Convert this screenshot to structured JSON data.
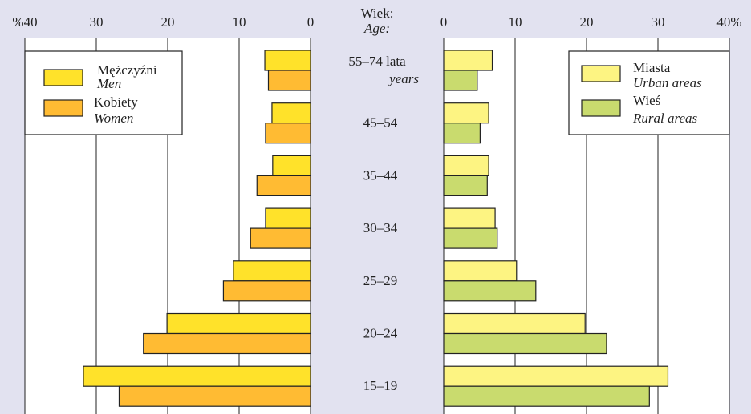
{
  "age_header": {
    "pl": "Wiek:",
    "en": "Age:"
  },
  "age_groups": [
    {
      "label": "55–74 lata",
      "sublabel": "years"
    },
    {
      "label": "45–54"
    },
    {
      "label": "35–44"
    },
    {
      "label": "30–34"
    },
    {
      "label": "25–29"
    },
    {
      "label": "20–24"
    },
    {
      "label": "15–19"
    }
  ],
  "left_axis": {
    "ticks": [
      "%40",
      "30",
      "20",
      "10",
      "0"
    ],
    "tick_values": [
      40,
      30,
      20,
      10,
      0
    ]
  },
  "right_axis": {
    "ticks": [
      "0",
      "10",
      "20",
      "30",
      "40%"
    ],
    "tick_values": [
      0,
      10,
      20,
      30,
      40
    ]
  },
  "legend_left": [
    {
      "pl": "Mężczyźni",
      "en": "Men",
      "color": "#ffe22a"
    },
    {
      "pl": "Kobiety",
      "en": "Women",
      "color": "#ffbb33"
    }
  ],
  "legend_right": [
    {
      "pl": "Miasta",
      "en": "Urban areas",
      "color": "#fdf482"
    },
    {
      "pl": "Wieś",
      "en": "Rural areas",
      "color": "#c9db6e"
    }
  ],
  "colors": {
    "background": "#e2e2f0",
    "panel": "#ffffff",
    "men": "#ffe22a",
    "women": "#ffbb33",
    "urban": "#fdf482",
    "rural": "#c9db6e",
    "stroke": "#222222"
  },
  "chart_data": [
    {
      "type": "bar",
      "orientation": "horizontal",
      "direction": "leftward",
      "categories": [
        "55–74",
        "45–54",
        "35–44",
        "30–34",
        "25–29",
        "20–24",
        "15–19"
      ],
      "series": [
        {
          "name": "Mężczyźni / Men",
          "values": [
            6.4,
            5.4,
            5.3,
            6.3,
            10.8,
            20.1,
            31.8
          ]
        },
        {
          "name": "Kobiety / Women",
          "values": [
            5.9,
            6.3,
            7.5,
            8.4,
            12.2,
            23.4,
            26.8
          ]
        }
      ],
      "xlim": [
        0,
        40
      ],
      "xlabel": "%",
      "grid": true,
      "legend": "top-left"
    },
    {
      "type": "bar",
      "orientation": "horizontal",
      "direction": "rightward",
      "categories": [
        "55–74",
        "45–54",
        "35–44",
        "30–34",
        "25–29",
        "20–24",
        "15–19"
      ],
      "series": [
        {
          "name": "Miasta / Urban areas",
          "values": [
            6.8,
            6.3,
            6.3,
            7.2,
            10.2,
            19.8,
            31.4
          ]
        },
        {
          "name": "Wieś / Rural areas",
          "values": [
            4.7,
            5.1,
            6.1,
            7.5,
            12.9,
            22.8,
            28.8
          ]
        }
      ],
      "xlim": [
        0,
        40
      ],
      "xlabel": "%",
      "grid": true,
      "legend": "top-right"
    }
  ]
}
